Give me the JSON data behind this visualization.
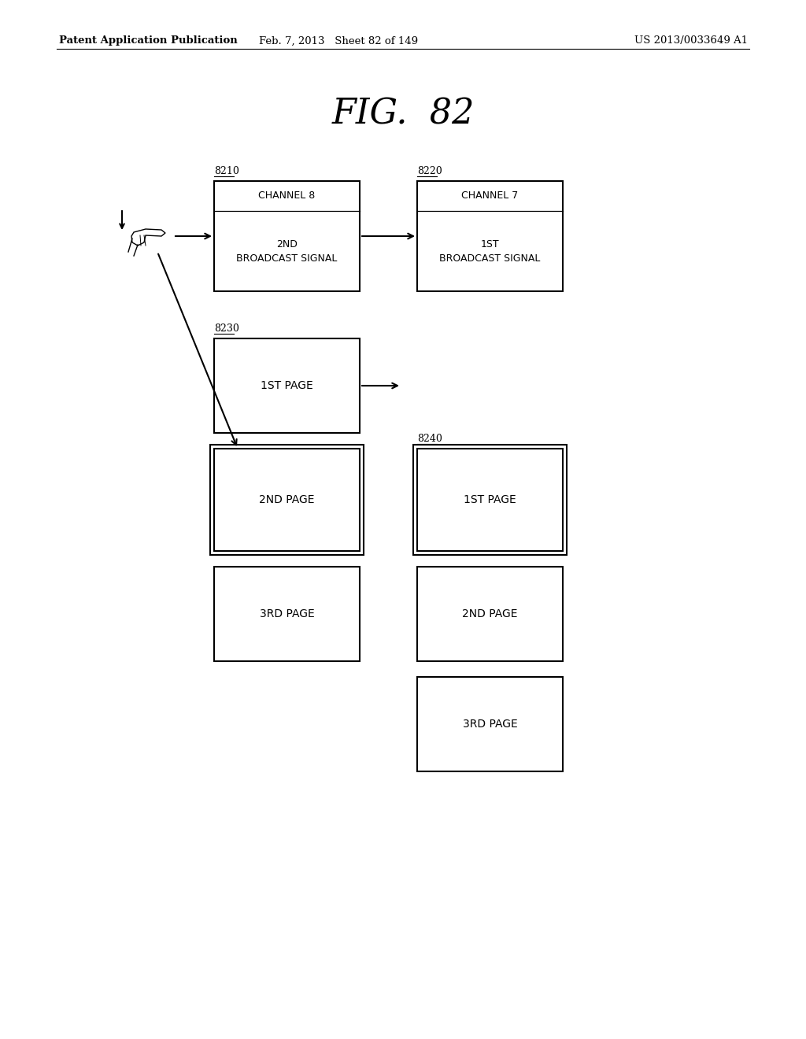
{
  "title": "FIG.  82",
  "header_left": "Patent Application Publication",
  "header_mid": "Feb. 7, 2013   Sheet 82 of 149",
  "header_right": "US 2013/0033649 A1",
  "bg_color": "#ffffff",
  "box_color": "#000000",
  "text_color": "#000000",
  "fig_width": 10.24,
  "fig_height": 13.2,
  "dpi": 100
}
